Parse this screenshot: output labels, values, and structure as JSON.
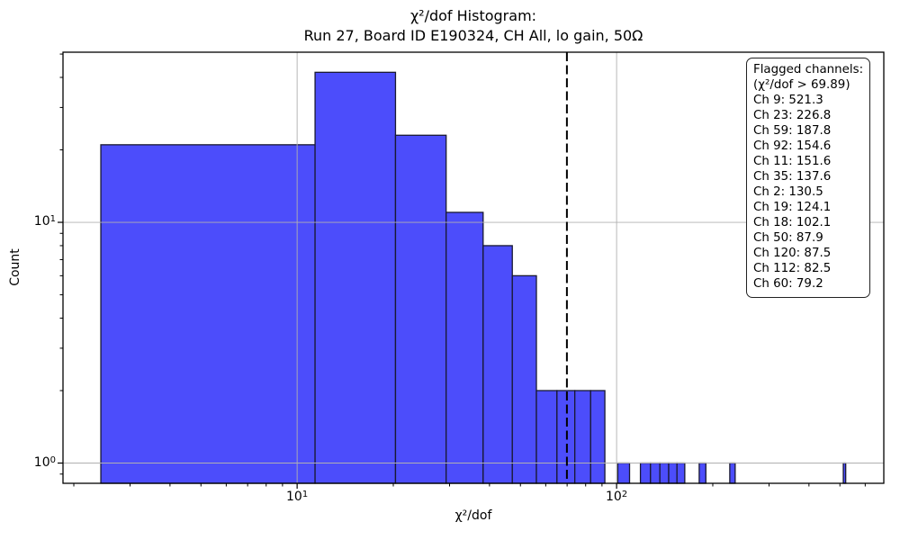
{
  "figure": {
    "title_line1": "χ²/dof Histogram:",
    "title_line2": "Run 27, Board ID E190324, CH All, lo gain, 50Ω",
    "xlabel": "χ²/dof",
    "ylabel": "Count"
  },
  "chart_data": {
    "type": "bar",
    "subtype": "histogram",
    "title": "χ²/dof Histogram: Run 27, Board ID E190324, CH All, lo gain, 50Ω",
    "xlabel": "χ²/dof",
    "ylabel": "Count",
    "xscale": "log",
    "yscale": "log",
    "xlim": [
      1.85,
      686
    ],
    "ylim": [
      0.824,
      50.9
    ],
    "grid": true,
    "grid_color": "#b0b0b0",
    "bar_color": "#4C4DFB",
    "bar_edge_color": "#191932",
    "bins": [
      {
        "x0": 2.43,
        "x1": 11.38,
        "count": 21
      },
      {
        "x0": 11.38,
        "x1": 20.32,
        "count": 42
      },
      {
        "x0": 20.32,
        "x1": 29.27,
        "count": 23
      },
      {
        "x0": 29.27,
        "x1": 38.21,
        "count": 11
      },
      {
        "x0": 38.21,
        "x1": 47.16,
        "count": 8
      },
      {
        "x0": 47.16,
        "x1": 56.1,
        "count": 6
      },
      {
        "x0": 56.1,
        "x1": 65.05,
        "count": 2
      },
      {
        "x0": 65.05,
        "x1": 73.99,
        "count": 2
      },
      {
        "x0": 73.99,
        "x1": 82.94,
        "count": 2
      },
      {
        "x0": 82.94,
        "x1": 91.89,
        "count": 2
      },
      {
        "x0": 100.83,
        "x1": 109.78,
        "count": 1
      },
      {
        "x0": 118.72,
        "x1": 127.67,
        "count": 1
      },
      {
        "x0": 127.67,
        "x1": 136.61,
        "count": 1
      },
      {
        "x0": 136.61,
        "x1": 145.56,
        "count": 1
      },
      {
        "x0": 145.56,
        "x1": 154.5,
        "count": 1
      },
      {
        "x0": 154.5,
        "x1": 163.45,
        "count": 1
      },
      {
        "x0": 181.34,
        "x1": 190.29,
        "count": 1
      },
      {
        "x0": 226.07,
        "x1": 235.01,
        "count": 1
      },
      {
        "x0": 512.36,
        "x1": 521.3,
        "count": 1
      }
    ],
    "threshold_line": {
      "value": 69.89,
      "style": "dashed",
      "color": "#000000"
    },
    "x_ticks_major": [
      10,
      100
    ],
    "x_ticks_minor": [
      2,
      3,
      4,
      5,
      6,
      7,
      8,
      9,
      20,
      30,
      40,
      50,
      60,
      70,
      80,
      90,
      200,
      300,
      400,
      500,
      600
    ],
    "y_ticks_major": [
      1,
      10
    ],
    "y_ticks_minor": [
      0.9,
      2,
      3,
      4,
      5,
      6,
      7,
      8,
      9,
      20,
      30,
      40,
      50
    ],
    "legend": {
      "title": "Flagged channels:",
      "threshold_label": "(χ²/dof > 69.89)",
      "channel_prefix": "Ch",
      "channels": [
        {
          "ch": 9,
          "value": "521.3"
        },
        {
          "ch": 23,
          "value": "226.8"
        },
        {
          "ch": 59,
          "value": "187.8"
        },
        {
          "ch": 92,
          "value": "154.6"
        },
        {
          "ch": 11,
          "value": "151.6"
        },
        {
          "ch": 35,
          "value": "137.6"
        },
        {
          "ch": 2,
          "value": "130.5"
        },
        {
          "ch": 19,
          "value": "124.1"
        },
        {
          "ch": 18,
          "value": "102.1"
        },
        {
          "ch": 50,
          "value": "87.9"
        },
        {
          "ch": 120,
          "value": "87.5"
        },
        {
          "ch": 112,
          "value": "82.5"
        },
        {
          "ch": 60,
          "value": "79.2"
        }
      ]
    }
  }
}
